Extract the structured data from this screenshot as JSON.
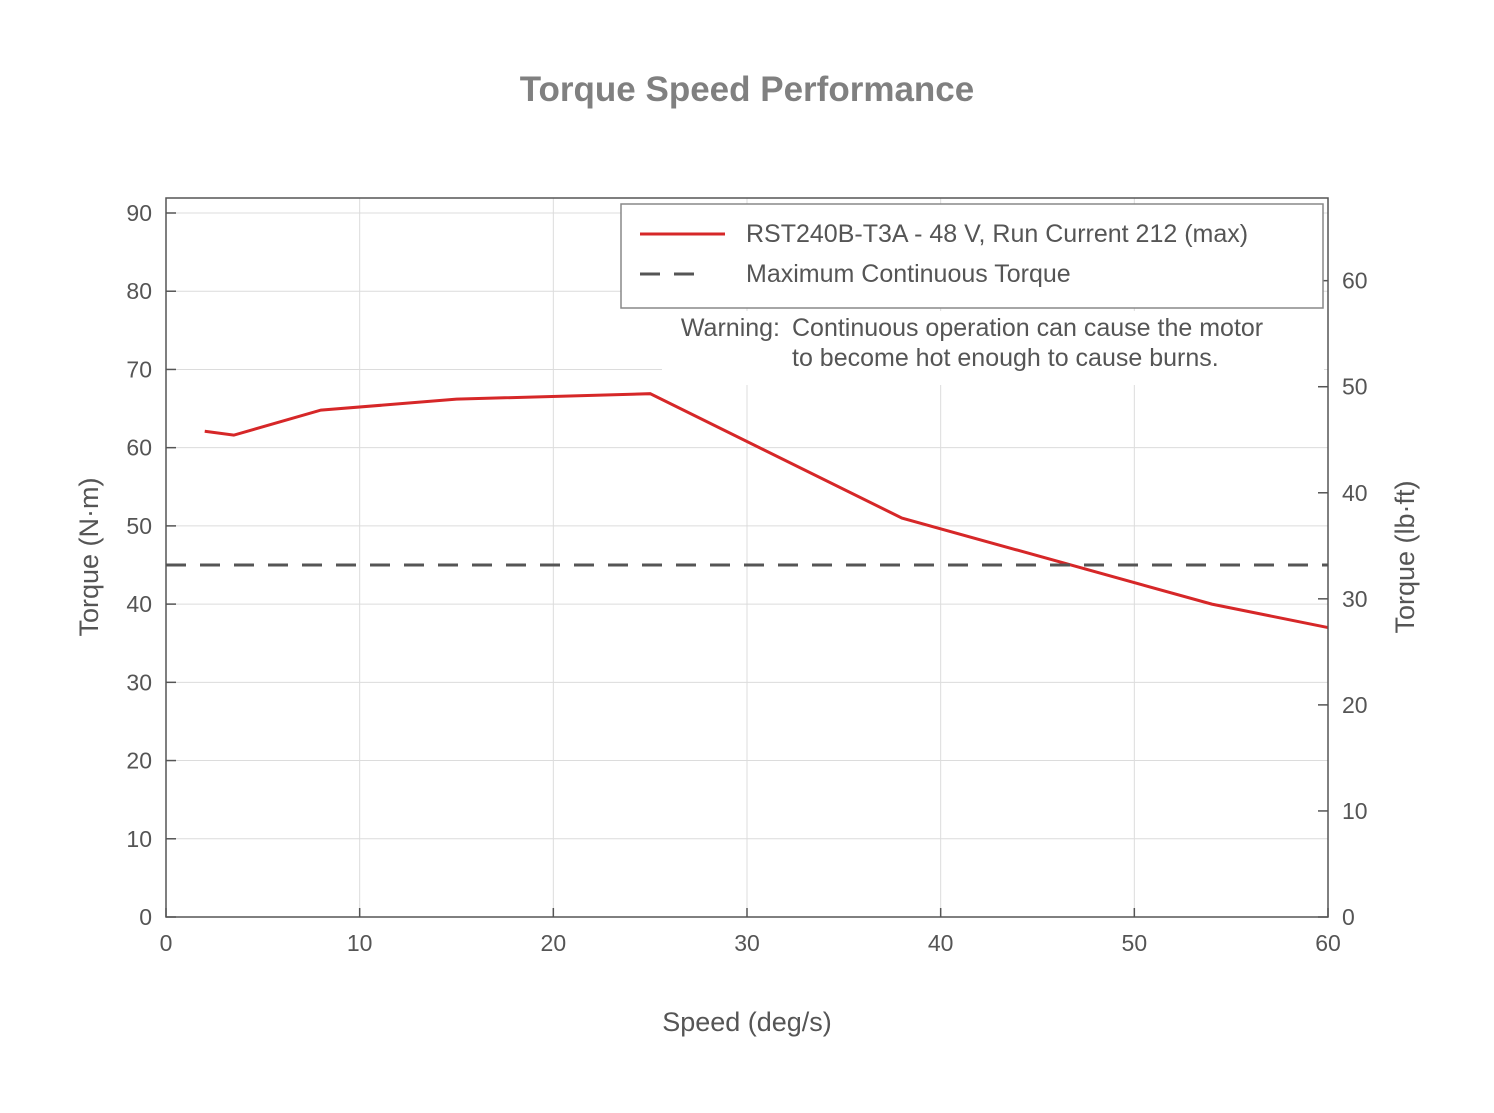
{
  "chart_data": {
    "type": "line",
    "title": "Torque Speed Performance",
    "xlabel": "Speed (deg/s)",
    "ylabel": "Torque (N·m)",
    "ylabel_right": "Torque (lb·ft)",
    "xlim": [
      0,
      60
    ],
    "ylim": [
      0,
      90
    ],
    "ylim_right": [
      0,
      66.38
    ],
    "xticks": [
      0,
      10,
      20,
      30,
      40,
      50,
      60
    ],
    "yticks": [
      0,
      10,
      20,
      30,
      40,
      50,
      60,
      70,
      80,
      90
    ],
    "yticks_right": [
      0,
      10,
      20,
      30,
      40,
      50,
      60
    ],
    "grid": true,
    "legend_placement": "top-right",
    "series": [
      {
        "name": "RST240B-T3A - 48 V, Run Current 212 (max)",
        "style": "solid",
        "color": "#d62728",
        "x": [
          2,
          3.5,
          8,
          15,
          25,
          38,
          54,
          60
        ],
        "y": [
          62.1,
          61.6,
          64.8,
          66.2,
          66.9,
          51.0,
          40.0,
          37.0
        ]
      },
      {
        "name": "Maximum Continuous Torque",
        "style": "dashed",
        "color": "#555555",
        "x": [
          0,
          60
        ],
        "y": [
          45,
          45
        ]
      }
    ],
    "annotation": {
      "label": "Warning:",
      "lines": [
        "Continuous operation can cause the motor",
        "to become hot enough to cause burns."
      ]
    }
  }
}
